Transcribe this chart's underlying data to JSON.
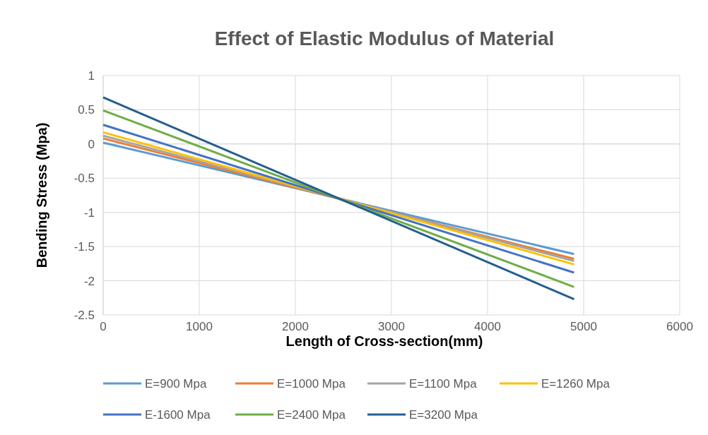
{
  "chart_data": {
    "type": "line",
    "title": "Effect of Elastic Modulus of Material",
    "xlabel": "Length of Cross-section(mm)",
    "ylabel": "Bending Stress (Mpa)",
    "x": [
      0,
      4900
    ],
    "series": [
      {
        "name": "E=900 Mpa",
        "color": "#5b9bd5",
        "values": [
          0.02,
          -1.61
        ]
      },
      {
        "name": "E=1000 Mpa",
        "color": "#ed7d31",
        "values": [
          0.08,
          -1.68
        ]
      },
      {
        "name": "E=1100 Mpa",
        "color": "#a5a5a5",
        "values": [
          0.12,
          -1.71
        ]
      },
      {
        "name": "E=1260 Mpa",
        "color": "#ffc000",
        "values": [
          0.17,
          -1.76
        ]
      },
      {
        "name": "E-1600 Mpa",
        "color": "#4472c4",
        "values": [
          0.28,
          -1.88
        ]
      },
      {
        "name": "E=2400 Mpa",
        "color": "#70ad47",
        "values": [
          0.49,
          -2.09
        ]
      },
      {
        "name": "E=3200 Mpa",
        "color": "#255e91",
        "values": [
          0.68,
          -2.27
        ]
      }
    ],
    "xlim": [
      0,
      6000
    ],
    "xticks": [
      0,
      1000,
      2000,
      3000,
      4000,
      5000,
      6000
    ],
    "ylim": [
      -2.5,
      1
    ],
    "yticks": [
      -2.5,
      -2,
      -1.5,
      -1,
      -0.5,
      0,
      0.5,
      1
    ],
    "grid": true,
    "legend": "bottom",
    "marker": "none",
    "line_style": "solid"
  }
}
